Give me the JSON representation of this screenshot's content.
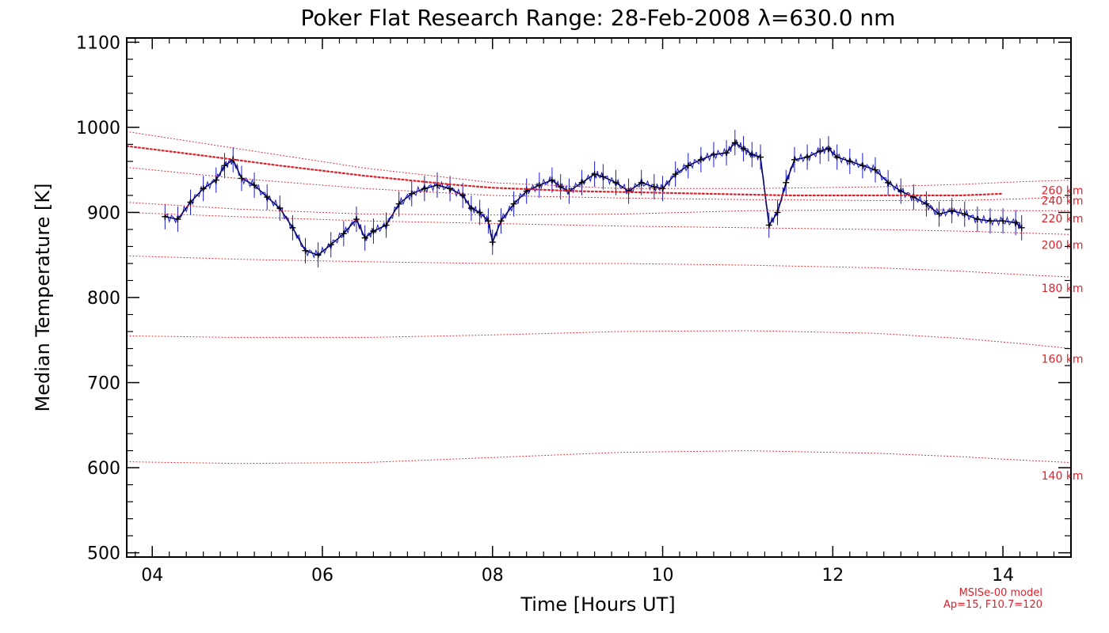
{
  "chart_data": {
    "type": "line",
    "title": "Poker Flat Research Range: 28-Feb-2008 λ=630.0 nm",
    "xlabel": "Time [Hours UT]",
    "ylabel": "Median Temperature [K]",
    "xlim": [
      3.7,
      14.8
    ],
    "ylim": [
      495,
      1105
    ],
    "xticks": [
      4,
      6,
      8,
      10,
      12,
      14
    ],
    "xtick_labels": [
      "04",
      "06",
      "08",
      "10",
      "12",
      "14"
    ],
    "yticks": [
      500,
      600,
      700,
      800,
      900,
      1000,
      1100
    ],
    "ytick_labels": [
      "500",
      "600",
      "700",
      "800",
      "900",
      "1000",
      "1100"
    ],
    "grid": false,
    "colors": {
      "measured": "#1a1acc",
      "marker": "#000000",
      "model": "#e0202a"
    },
    "series": [
      {
        "style": "measured",
        "x": [
          4.15,
          4.3,
          4.45,
          4.6,
          4.75,
          4.85,
          4.95,
          5.05,
          5.2,
          5.35,
          5.5,
          5.65,
          5.8,
          5.95,
          6.1,
          6.25,
          6.4,
          6.5,
          6.6,
          6.75,
          6.9,
          7.05,
          7.2,
          7.35,
          7.5,
          7.65,
          7.75,
          7.85,
          7.95,
          8.0,
          8.1,
          8.25,
          8.4,
          8.55,
          8.7,
          8.8,
          8.9,
          9.05,
          9.2,
          9.3,
          9.45,
          9.6,
          9.75,
          9.9,
          10.0,
          10.15,
          10.3,
          10.45,
          10.6,
          10.75,
          10.85,
          10.95,
          11.05,
          11.15,
          11.25,
          11.35,
          11.45,
          11.55,
          11.7,
          11.85,
          11.95,
          12.05,
          12.2,
          12.35,
          12.5,
          12.65,
          12.8,
          12.95,
          13.1,
          13.25,
          13.4,
          13.55,
          13.7,
          13.85,
          14.0,
          14.15,
          14.22
        ],
        "y": [
          895,
          892,
          912,
          928,
          938,
          955,
          962,
          940,
          932,
          918,
          905,
          882,
          855,
          850,
          862,
          875,
          892,
          870,
          878,
          885,
          910,
          922,
          928,
          932,
          928,
          920,
          905,
          900,
          890,
          865,
          890,
          910,
          925,
          932,
          938,
          930,
          925,
          935,
          945,
          942,
          935,
          925,
          935,
          930,
          928,
          945,
          955,
          962,
          968,
          970,
          982,
          975,
          968,
          965,
          885,
          900,
          935,
          962,
          965,
          972,
          975,
          965,
          960,
          955,
          950,
          935,
          925,
          918,
          910,
          898,
          902,
          898,
          892,
          890,
          890,
          888,
          882
        ]
      },
      {
        "style": "model-heavy",
        "x": [
          3.7,
          4.5,
          5.5,
          6.5,
          7.5,
          8.0,
          8.5,
          9.0,
          9.5,
          10.0,
          10.5,
          11.0,
          11.5,
          12.0,
          12.5,
          13.0,
          13.5,
          14.0
        ],
        "y": [
          978,
          968,
          955,
          943,
          933,
          929,
          927,
          925,
          924,
          923,
          922,
          921,
          920,
          920,
          920,
          920,
          920,
          922
        ]
      },
      {
        "style": "model",
        "x": [
          3.7,
          5.0,
          6.5,
          8.0,
          9.5,
          11.0,
          12.5,
          13.5,
          14.2,
          14.8
        ],
        "y": [
          995,
          975,
          952,
          935,
          928,
          928,
          930,
          933,
          936,
          938
        ]
      },
      {
        "style": "model",
        "x": [
          3.7,
          5.0,
          6.5,
          8.0,
          9.5,
          11.0,
          12.5,
          13.5,
          14.2,
          14.8
        ],
        "y": [
          953,
          940,
          928,
          920,
          917,
          915,
          914,
          914,
          916,
          918
        ]
      },
      {
        "style": "model",
        "x": [
          3.7,
          5.0,
          6.5,
          8.0,
          9.5,
          11.0,
          12.5,
          13.5,
          14.2,
          14.8
        ],
        "y": [
          912,
          904,
          898,
          897,
          898,
          902,
          903,
          903,
          902,
          902
        ]
      },
      {
        "style": "model",
        "x": [
          3.7,
          5.0,
          6.5,
          8.0,
          9.5,
          11.0,
          12.5,
          13.5,
          14.2,
          14.8
        ],
        "y": [
          900,
          895,
          890,
          887,
          884,
          882,
          880,
          878,
          876,
          874
        ]
      },
      {
        "style": "model",
        "x": [
          3.7,
          5.0,
          6.5,
          8.0,
          9.5,
          11.0,
          12.5,
          13.5,
          14.2,
          14.8
        ],
        "y": [
          849,
          845,
          842,
          840,
          840,
          838,
          835,
          831,
          827,
          824
        ]
      },
      {
        "style": "model",
        "x": [
          3.7,
          5.0,
          6.5,
          8.0,
          9.5,
          11.0,
          12.5,
          13.5,
          14.2,
          14.8
        ],
        "y": [
          755,
          753,
          753,
          756,
          760,
          761,
          758,
          752,
          746,
          740
        ]
      },
      {
        "style": "model",
        "x": [
          3.7,
          5.0,
          6.5,
          8.0,
          9.5,
          11.0,
          12.5,
          13.5,
          14.2,
          14.8
        ],
        "y": [
          607,
          605,
          606,
          612,
          618,
          620,
          617,
          613,
          609,
          606
        ]
      }
    ],
    "annotations": [
      {
        "text": "260 km",
        "x": 14.2,
        "y": 926
      },
      {
        "text": "240 km",
        "x": 14.2,
        "y": 914
      },
      {
        "text": "220 km",
        "x": 14.2,
        "y": 893
      },
      {
        "text": "200 km",
        "x": 14.2,
        "y": 862
      },
      {
        "text": "180 km",
        "x": 14.2,
        "y": 811
      },
      {
        "text": "160 km",
        "x": 14.2,
        "y": 728
      },
      {
        "text": "140 km",
        "x": 14.2,
        "y": 591
      }
    ],
    "notes": [
      "MSISe-00 model",
      "Ap=15, F10.7=120"
    ]
  }
}
